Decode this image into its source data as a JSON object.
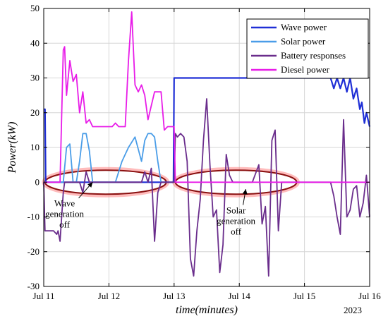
{
  "chart_data": {
    "type": "line",
    "xlabel": "time(minutes)",
    "ylabel": "Power(kW)",
    "year_label": "2023",
    "ylim": [
      -30,
      50
    ],
    "yticks": [
      -30,
      -20,
      -10,
      0,
      10,
      20,
      30,
      40,
      50
    ],
    "xlim": [
      "Jul 11",
      "Jul 16"
    ],
    "xticks": [
      "Jul 11",
      "Jul 12",
      "Jul 13",
      "Jul 14",
      "Jul 15",
      "Jul 16"
    ],
    "grid": true,
    "legend_position": "top-right",
    "colors": {
      "wave": "#1f2fd6",
      "solar": "#4a9de8",
      "battery": "#6a2d8c",
      "diesel": "#e81ce8",
      "ellipse_stroke": "#8a1010",
      "ellipse_glow": "#ff6a6a"
    },
    "series": [
      {
        "name": "Wave power",
        "color": "#1f2fd6",
        "x": [
          0,
          0.02,
          0.03,
          1.99,
          2.0,
          2.01,
          4.4,
          4.45,
          4.5,
          4.55,
          4.6,
          4.65,
          4.7,
          4.75,
          4.8,
          4.85,
          4.88,
          4.92,
          4.95,
          5.0
        ],
        "y": [
          21,
          21,
          0,
          0,
          30,
          30,
          30,
          27,
          30,
          27,
          30,
          26,
          30,
          24,
          27,
          21,
          23,
          17,
          20,
          16
        ]
      },
      {
        "name": "Solar power",
        "color": "#4a9de8",
        "x": [
          0,
          0.3,
          0.35,
          0.4,
          0.45,
          0.5,
          0.55,
          0.6,
          0.65,
          0.7,
          0.75,
          0.8,
          1.0,
          1.1,
          1.2,
          1.3,
          1.4,
          1.5,
          1.55,
          1.6,
          1.65,
          1.7,
          1.75,
          1.8,
          2.0
        ],
        "y": [
          0,
          0,
          10,
          11,
          0,
          0,
          6,
          14,
          14,
          9,
          0,
          0,
          0,
          0,
          6,
          10,
          13,
          6,
          12,
          14,
          14,
          13,
          6,
          0,
          0
        ]
      },
      {
        "name": "Battery responses",
        "color": "#6a2d8c",
        "x": [
          0,
          0.02,
          0.05,
          0.1,
          0.15,
          0.2,
          0.22,
          0.25,
          0.3,
          0.32,
          0.35,
          0.4,
          0.45,
          0.5,
          0.55,
          0.6,
          0.65,
          0.7,
          0.8,
          0.9,
          1.0,
          1.1,
          1.2,
          1.3,
          1.4,
          1.5,
          1.55,
          1.6,
          1.65,
          1.7,
          1.75,
          1.8,
          1.9,
          2.0,
          2.02,
          2.05,
          2.1,
          2.15,
          2.2,
          2.25,
          2.3,
          2.35,
          2.4,
          2.45,
          2.5,
          2.55,
          2.6,
          2.65,
          2.7,
          2.75,
          2.8,
          2.85,
          2.9,
          3.0,
          3.1,
          3.2,
          3.3,
          3.35,
          3.4,
          3.45,
          3.5,
          3.55,
          3.6,
          3.65,
          3.7,
          3.75,
          3.8,
          3.85,
          3.9,
          4.0,
          4.1,
          4.2,
          4.3,
          4.35,
          4.4,
          4.45,
          4.5,
          4.55,
          4.6,
          4.65,
          4.7,
          4.75,
          4.8,
          4.85,
          4.9,
          4.95,
          5.0
        ],
        "y": [
          0,
          -14,
          -14,
          -14,
          -14,
          -15,
          -14,
          -17,
          -3,
          0,
          0,
          0,
          0,
          0,
          0,
          -3,
          3,
          0,
          0,
          0,
          0,
          0,
          0,
          0,
          0,
          0,
          3,
          0,
          4,
          -17,
          -3,
          0,
          0,
          0,
          14,
          13,
          14,
          13,
          6,
          -22,
          -27,
          -14,
          -5,
          12,
          24,
          5,
          -10,
          -8,
          -26,
          -18,
          8,
          2,
          0,
          0,
          0,
          0,
          5,
          -12,
          -7,
          -27,
          12,
          15,
          -14,
          0,
          0,
          0,
          0,
          0,
          0,
          0,
          0,
          0,
          0,
          0,
          0,
          -4,
          -10,
          -15,
          18,
          -10,
          -8,
          -2,
          -1,
          -10,
          -6,
          2,
          -10
        ]
      },
      {
        "name": "Diesel power",
        "color": "#e81ce8",
        "x": [
          0,
          0.02,
          0.05,
          0.1,
          0.15,
          0.2,
          0.25,
          0.3,
          0.32,
          0.35,
          0.4,
          0.45,
          0.5,
          0.55,
          0.6,
          0.65,
          0.7,
          0.75,
          0.8,
          0.9,
          1.0,
          1.05,
          1.1,
          1.15,
          1.2,
          1.25,
          1.3,
          1.35,
          1.4,
          1.45,
          1.5,
          1.55,
          1.6,
          1.7,
          1.8,
          1.85,
          1.9,
          2.0,
          2.02,
          5.0
        ],
        "y": [
          0,
          0,
          0,
          0,
          0,
          0,
          0,
          38,
          39,
          25,
          35,
          29,
          31,
          20,
          26,
          17,
          18,
          16,
          16,
          16,
          16,
          16,
          17,
          16,
          16,
          16,
          35,
          49,
          28,
          26,
          28,
          25,
          18,
          26,
          26,
          15,
          16,
          16,
          0,
          0
        ]
      }
    ],
    "annotations": [
      {
        "lines": [
          "Wave",
          "generation",
          "off"
        ]
      },
      {
        "lines": [
          "Solar",
          "generation",
          "off"
        ]
      }
    ]
  }
}
